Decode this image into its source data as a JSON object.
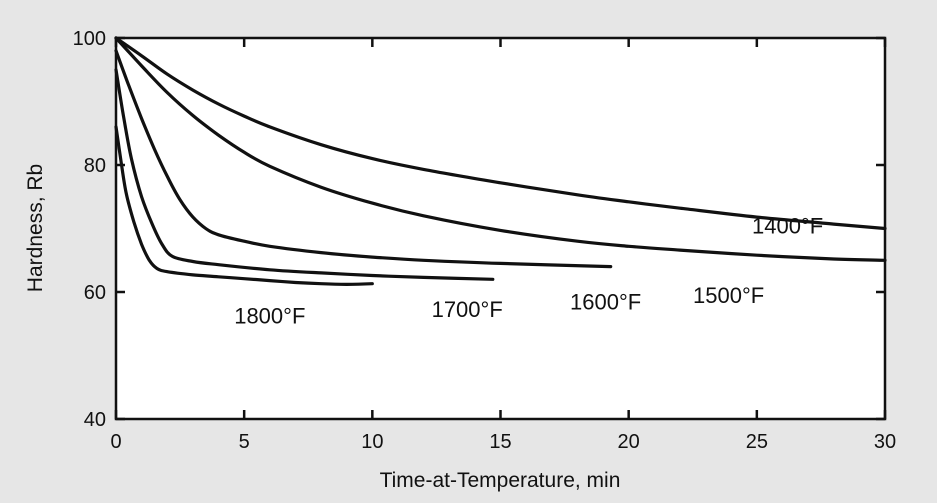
{
  "chart_data": {
    "type": "line",
    "title": "",
    "xlabel": "Time-at-Temperature, min",
    "ylabel": "Hardness, Rb",
    "xlim": [
      0,
      30
    ],
    "ylim": [
      40,
      100
    ],
    "x_ticks": [
      "0",
      "5",
      "10",
      "15",
      "20",
      "25",
      "30"
    ],
    "y_ticks": [
      "40",
      "60",
      "80",
      "100"
    ],
    "grid": false,
    "legend": "none (series labeled directly on curves)",
    "line_color": "#111111",
    "plot_background": "#ffffff",
    "page_background": "#e6e6e6",
    "series": [
      {
        "name": "1400°F",
        "x": [
          0,
          1,
          2,
          3,
          4,
          5,
          6,
          8,
          10,
          12,
          15,
          18,
          20,
          22,
          25,
          28,
          30
        ],
        "y": [
          100,
          97.2,
          94.3,
          91.8,
          89.6,
          87.7,
          86,
          83.2,
          81,
          79.3,
          77.2,
          75.3,
          74.2,
          73.2,
          71.8,
          70.7,
          70
        ]
      },
      {
        "name": "1500°F",
        "x": [
          0,
          1,
          2,
          3,
          4,
          5,
          6,
          8,
          10,
          12,
          15,
          18,
          20,
          22,
          25,
          28,
          30
        ],
        "y": [
          100,
          95.6,
          91.4,
          87.8,
          84.7,
          82,
          79.8,
          76.5,
          74,
          72,
          69.7,
          68,
          67.2,
          66.6,
          65.8,
          65.2,
          65
        ]
      },
      {
        "name": "1600°F",
        "x": [
          0,
          0.5,
          1,
          1.5,
          2,
          2.5,
          3,
          3.5,
          4,
          5,
          6,
          8,
          10,
          12,
          15,
          19.3
        ],
        "y": [
          98,
          92.5,
          87.3,
          82.5,
          78.2,
          74.5,
          71.8,
          70,
          69,
          68,
          67.2,
          66.2,
          65.5,
          65,
          64.5,
          64
        ]
      },
      {
        "name": "1700°F",
        "x": [
          0,
          0.3,
          0.6,
          1,
          1.4,
          1.8,
          2.2,
          3,
          4,
          6,
          8,
          10,
          12,
          14.7
        ],
        "y": [
          95,
          87.5,
          81,
          75,
          70.8,
          67.5,
          65.6,
          64.8,
          64.3,
          63.5,
          63,
          62.6,
          62.3,
          62
        ]
      },
      {
        "name": "1800°F",
        "x": [
          0,
          0.2,
          0.4,
          0.7,
          1,
          1.3,
          1.6,
          2,
          3,
          4,
          5,
          6,
          7,
          8,
          9,
          10
        ],
        "y": [
          86,
          80.5,
          75.5,
          71,
          67.5,
          65,
          63.7,
          63.2,
          62.7,
          62.4,
          62.1,
          61.8,
          61.5,
          61.3,
          61.2,
          61.3
        ]
      }
    ],
    "series_labels": [
      {
        "text": "1400°F",
        "x": 26.2,
        "y": 70.5
      },
      {
        "text": "1500°F",
        "x": 23.9,
        "y": 59.5
      },
      {
        "text": "1600°F",
        "x": 19.1,
        "y": 58.5
      },
      {
        "text": "1700°F",
        "x": 13.7,
        "y": 57.3
      },
      {
        "text": "1800°F",
        "x": 6.0,
        "y": 56.3
      }
    ]
  }
}
